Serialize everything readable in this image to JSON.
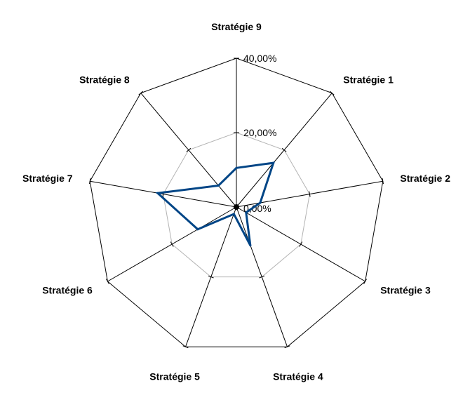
{
  "chart_data": {
    "type": "radar",
    "title": "",
    "categories": [
      "Stratégie 9",
      "Stratégie 1",
      "Stratégie 2",
      "Stratégie 3",
      "Stratégie 4",
      "Stratégie 5",
      "Stratégie 6",
      "Stratégie 7",
      "Stratégie 8"
    ],
    "series": [
      {
        "values": [
          10.5,
          15.5,
          6.5,
          3.0,
          11.0,
          2.0,
          12.0,
          21.5,
          7.5
        ],
        "color": "#004586"
      }
    ],
    "rlim": [
      0,
      40
    ],
    "ticks": [
      "0,00%",
      "20,00%",
      "40,00%"
    ],
    "tick_values": [
      0,
      20,
      40
    ],
    "grid": true,
    "legend": "none"
  }
}
